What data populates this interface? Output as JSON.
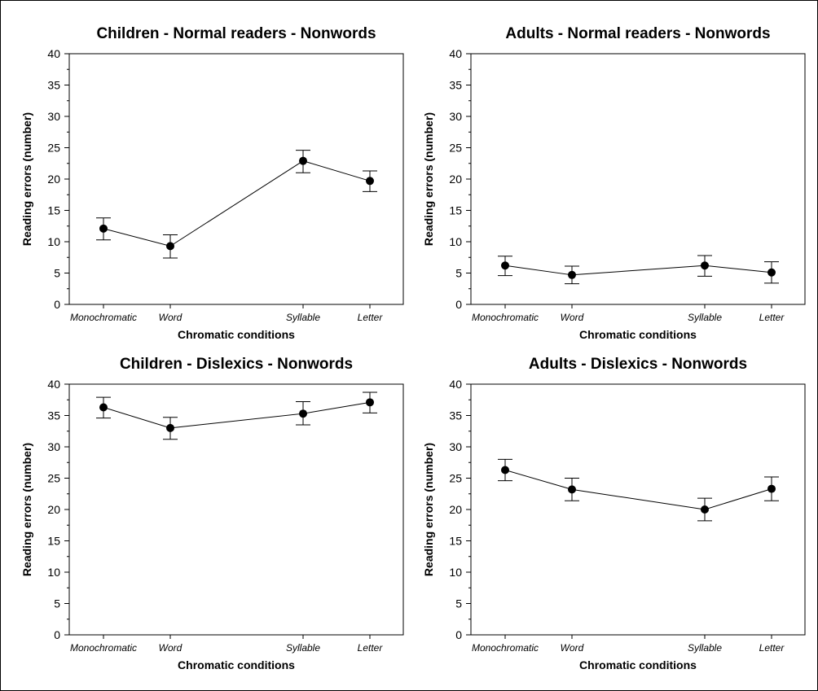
{
  "chart_data": [
    {
      "type": "line",
      "title": "Children - Normal readers - Nonwords",
      "xlabel": "Chromatic conditions",
      "ylabel": "Reading errors (number)",
      "ylim": [
        0,
        40
      ],
      "yticks": [
        0,
        5,
        10,
        15,
        20,
        25,
        30,
        35,
        40
      ],
      "categories": [
        "Monochromatic",
        "Word",
        "Syllable",
        "Letter"
      ],
      "x": [
        1,
        2,
        4,
        5
      ],
      "series": [
        {
          "values": [
            12.1,
            9.3,
            22.9,
            19.7
          ],
          "error_low": [
            10.3,
            7.4,
            21.0,
            18.0
          ],
          "error_high": [
            13.8,
            11.1,
            24.6,
            21.3
          ]
        }
      ],
      "grid": false
    },
    {
      "type": "line",
      "title": "Adults - Normal readers - Nonwords",
      "xlabel": "Chromatic conditions",
      "ylabel": "Reading errors (number)",
      "ylim": [
        0,
        40
      ],
      "yticks": [
        0,
        5,
        10,
        15,
        20,
        25,
        30,
        35,
        40
      ],
      "categories": [
        "Monochromatic",
        "Word",
        "Syllable",
        "Letter"
      ],
      "x": [
        1,
        2,
        4,
        5
      ],
      "series": [
        {
          "values": [
            6.2,
            4.7,
            6.2,
            5.1
          ],
          "error_low": [
            4.6,
            3.3,
            4.5,
            3.4
          ],
          "error_high": [
            7.7,
            6.1,
            7.8,
            6.8
          ]
        }
      ],
      "grid": false
    },
    {
      "type": "line",
      "title": "Children - Dislexics - Nonwords",
      "xlabel": "Chromatic conditions",
      "ylabel": "Reading errors (number)",
      "ylim": [
        0,
        40
      ],
      "yticks": [
        0,
        5,
        10,
        15,
        20,
        25,
        30,
        35,
        40
      ],
      "categories": [
        "Monochromatic",
        "Word",
        "Syllable",
        "Letter"
      ],
      "x": [
        1,
        2,
        4,
        5
      ],
      "series": [
        {
          "values": [
            36.3,
            33.0,
            35.3,
            37.1
          ],
          "error_low": [
            34.6,
            31.2,
            33.5,
            35.4
          ],
          "error_high": [
            37.9,
            34.7,
            37.2,
            38.7
          ]
        }
      ],
      "grid": false
    },
    {
      "type": "line",
      "title": "Adults - Dislexics - Nonwords",
      "xlabel": "Chromatic conditions",
      "ylabel": "Reading errors (number)",
      "ylim": [
        0,
        40
      ],
      "yticks": [
        0,
        5,
        10,
        15,
        20,
        25,
        30,
        35,
        40
      ],
      "categories": [
        "Monochromatic",
        "Word",
        "Syllable",
        "Letter"
      ],
      "x": [
        1,
        2,
        4,
        5
      ],
      "series": [
        {
          "values": [
            26.3,
            23.2,
            20.0,
            23.3
          ],
          "error_low": [
            24.6,
            21.4,
            18.2,
            21.4
          ],
          "error_high": [
            28.0,
            25.0,
            21.8,
            25.2
          ]
        }
      ],
      "grid": false
    }
  ]
}
